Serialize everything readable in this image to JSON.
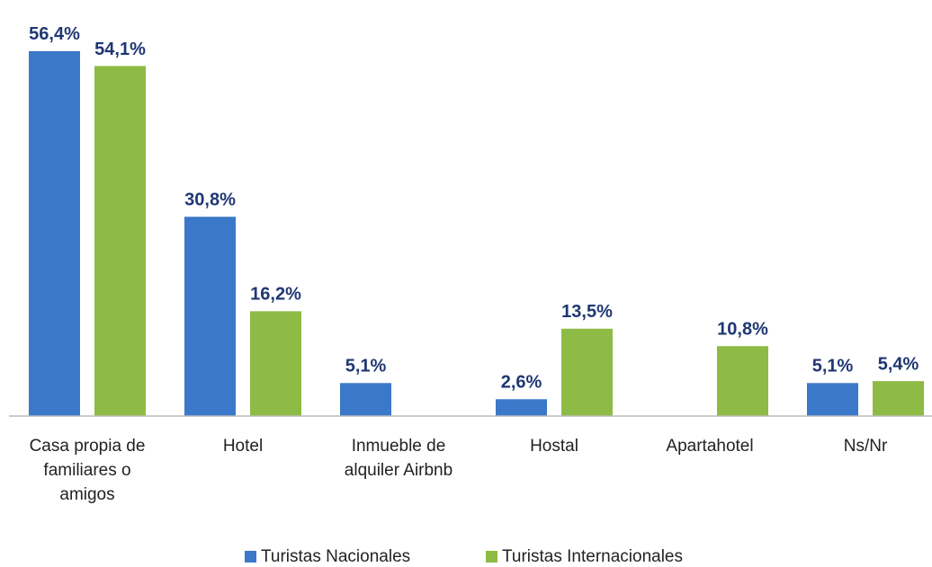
{
  "chart_data": {
    "type": "bar",
    "categories": [
      "Casa propia de familiares o amigos",
      "Hotel",
      "Inmueble de alquiler Airbnb",
      "Hostal",
      "Apartahotel",
      "Ns/Nr"
    ],
    "series": [
      {
        "name": "Turistas Nacionales",
        "color": "#3b78c9",
        "values": [
          56.4,
          30.8,
          5.1,
          2.6,
          null,
          5.1
        ],
        "value_labels": [
          "56,4%",
          "30,8%",
          "5,1%",
          "2,6%",
          null,
          "5,1%"
        ]
      },
      {
        "name": "Turistas Internacionales",
        "color": "#8dbb45",
        "values": [
          54.1,
          16.2,
          null,
          13.5,
          10.8,
          5.4
        ],
        "value_labels": [
          "54,1%",
          "16,2%",
          null,
          "13,5%",
          "10,8%",
          "5,4%"
        ]
      }
    ],
    "legend": "bottom"
  }
}
